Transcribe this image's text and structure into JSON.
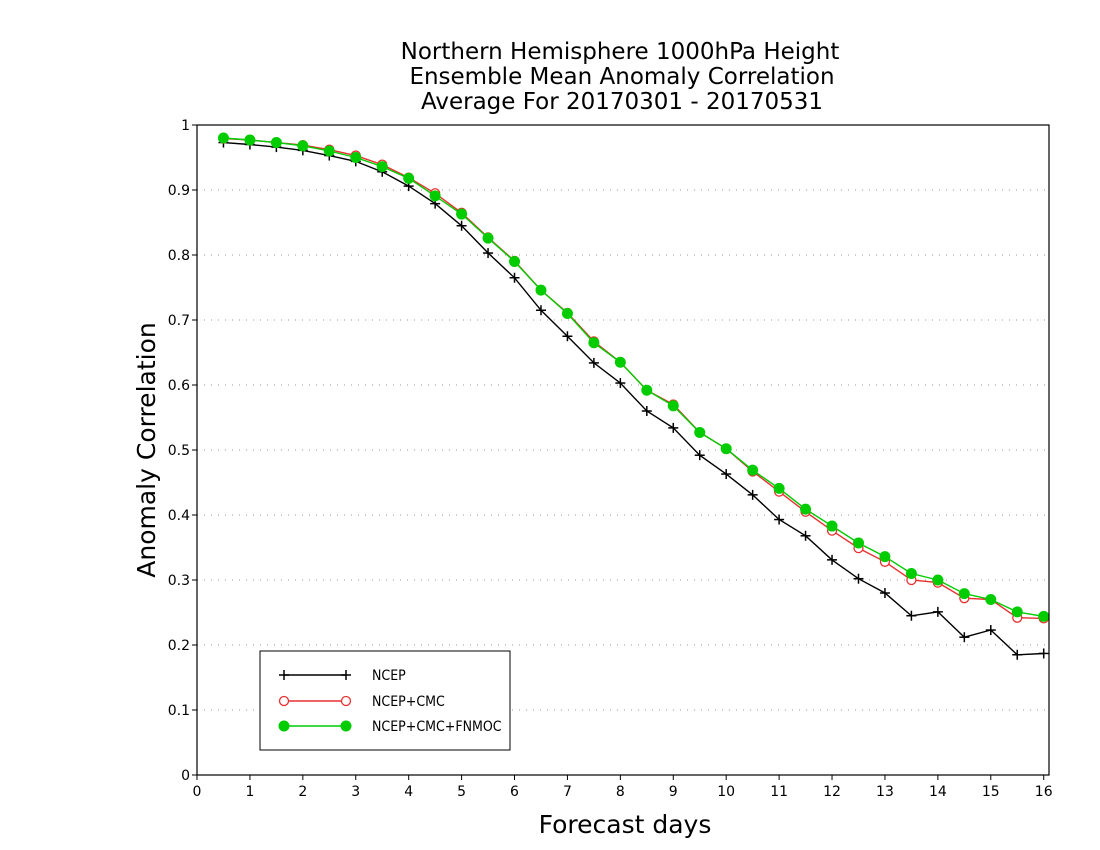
{
  "chart_data": {
    "type": "line",
    "title_lines": [
      "Northern Hemisphere 1000hPa Height",
      "Ensemble Mean Anomaly Correlation",
      "Average For 20170301 - 20170531"
    ],
    "xlabel": "Forecast days",
    "ylabel": "Anomaly Correlation",
    "xlim": [
      0,
      16.1
    ],
    "ylim": [
      0,
      1
    ],
    "xticks": [
      0,
      1,
      2,
      3,
      4,
      5,
      6,
      7,
      8,
      9,
      10,
      11,
      12,
      13,
      14,
      15,
      16
    ],
    "yticks": [
      0,
      0.1,
      0.2,
      0.3,
      0.4,
      0.5,
      0.6,
      0.7,
      0.8,
      0.9,
      1
    ],
    "grid": "horizontal dotted",
    "legend_position": "bottom-left",
    "x": [
      0.5,
      1,
      1.5,
      2,
      2.5,
      3,
      3.5,
      4,
      4.5,
      5,
      5.5,
      6,
      6.5,
      7,
      7.5,
      8,
      8.5,
      9,
      9.5,
      10,
      10.5,
      11,
      11.5,
      12,
      12.5,
      13,
      13.5,
      14,
      14.5,
      15,
      15.5,
      16
    ],
    "series": [
      {
        "name": "NCEP",
        "color": "#000000",
        "marker": "plus",
        "values": [
          0.973,
          0.97,
          0.966,
          0.961,
          0.953,
          0.944,
          0.928,
          0.906,
          0.879,
          0.845,
          0.803,
          0.765,
          0.715,
          0.675,
          0.634,
          0.603,
          0.56,
          0.534,
          0.492,
          0.463,
          0.431,
          0.393,
          0.368,
          0.331,
          0.302,
          0.28,
          0.245,
          0.251,
          0.212,
          0.223,
          0.185,
          0.187
        ]
      },
      {
        "name": "NCEP+CMC",
        "color": "#e83030",
        "marker": "open-circle",
        "values": [
          0.979,
          0.977,
          0.973,
          0.969,
          0.962,
          0.953,
          0.939,
          0.919,
          0.895,
          0.865,
          0.827,
          0.791,
          0.746,
          0.711,
          0.667,
          0.635,
          0.592,
          0.57,
          0.527,
          0.502,
          0.467,
          0.436,
          0.405,
          0.376,
          0.349,
          0.328,
          0.3,
          0.296,
          0.272,
          0.27,
          0.242,
          0.241
        ]
      },
      {
        "name": "NCEP+CMC+FNMOC",
        "color": "#00cc00",
        "marker": "filled-circle",
        "values": [
          0.98,
          0.977,
          0.973,
          0.968,
          0.96,
          0.95,
          0.936,
          0.918,
          0.891,
          0.863,
          0.826,
          0.79,
          0.746,
          0.71,
          0.665,
          0.635,
          0.592,
          0.568,
          0.527,
          0.502,
          0.469,
          0.441,
          0.409,
          0.383,
          0.357,
          0.336,
          0.31,
          0.3,
          0.279,
          0.27,
          0.251,
          0.244
        ]
      }
    ]
  }
}
